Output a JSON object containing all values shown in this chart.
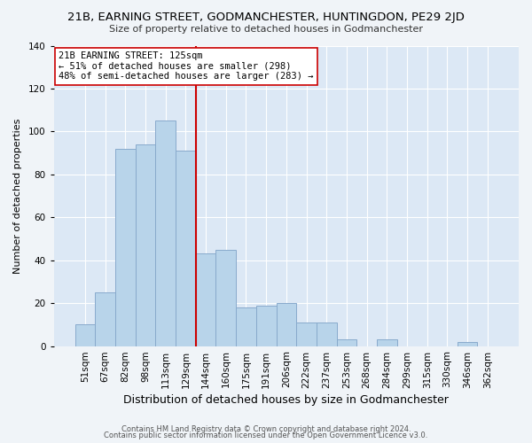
{
  "title": "21B, EARNING STREET, GODMANCHESTER, HUNTINGDON, PE29 2JD",
  "subtitle": "Size of property relative to detached houses in Godmanchester",
  "xlabel": "Distribution of detached houses by size in Godmanchester",
  "ylabel": "Number of detached properties",
  "footer_line1": "Contains HM Land Registry data © Crown copyright and database right 2024.",
  "footer_line2": "Contains public sector information licensed under the Open Government Licence v3.0.",
  "bar_labels": [
    "51sqm",
    "67sqm",
    "82sqm",
    "98sqm",
    "113sqm",
    "129sqm",
    "144sqm",
    "160sqm",
    "175sqm",
    "191sqm",
    "206sqm",
    "222sqm",
    "237sqm",
    "253sqm",
    "268sqm",
    "284sqm",
    "299sqm",
    "315sqm",
    "330sqm",
    "346sqm",
    "362sqm"
  ],
  "bar_values": [
    10,
    25,
    92,
    94,
    105,
    91,
    43,
    45,
    18,
    19,
    20,
    11,
    11,
    3,
    0,
    3,
    0,
    0,
    0,
    2,
    0
  ],
  "bar_color": "#b8d4ea",
  "bar_edge_color": "#88aacc",
  "vline_x": 5.5,
  "vline_color": "#cc0000",
  "annotation_title": "21B EARNING STREET: 125sqm",
  "annotation_line1": "← 51% of detached houses are smaller (298)",
  "annotation_line2": "48% of semi-detached houses are larger (283) →",
  "annotation_box_facecolor": "#ffffff",
  "annotation_box_edgecolor": "#cc0000",
  "ylim": [
    0,
    140
  ],
  "yticks": [
    0,
    20,
    40,
    60,
    80,
    100,
    120,
    140
  ],
  "background_color": "#f0f4f8",
  "plot_bg_color": "#dce8f5",
  "grid_color": "#ffffff",
  "title_fontsize": 9.5,
  "subtitle_fontsize": 8,
  "xlabel_fontsize": 9,
  "ylabel_fontsize": 8,
  "footer_fontsize": 6,
  "tick_fontsize": 7.5,
  "annot_fontsize": 7.5
}
